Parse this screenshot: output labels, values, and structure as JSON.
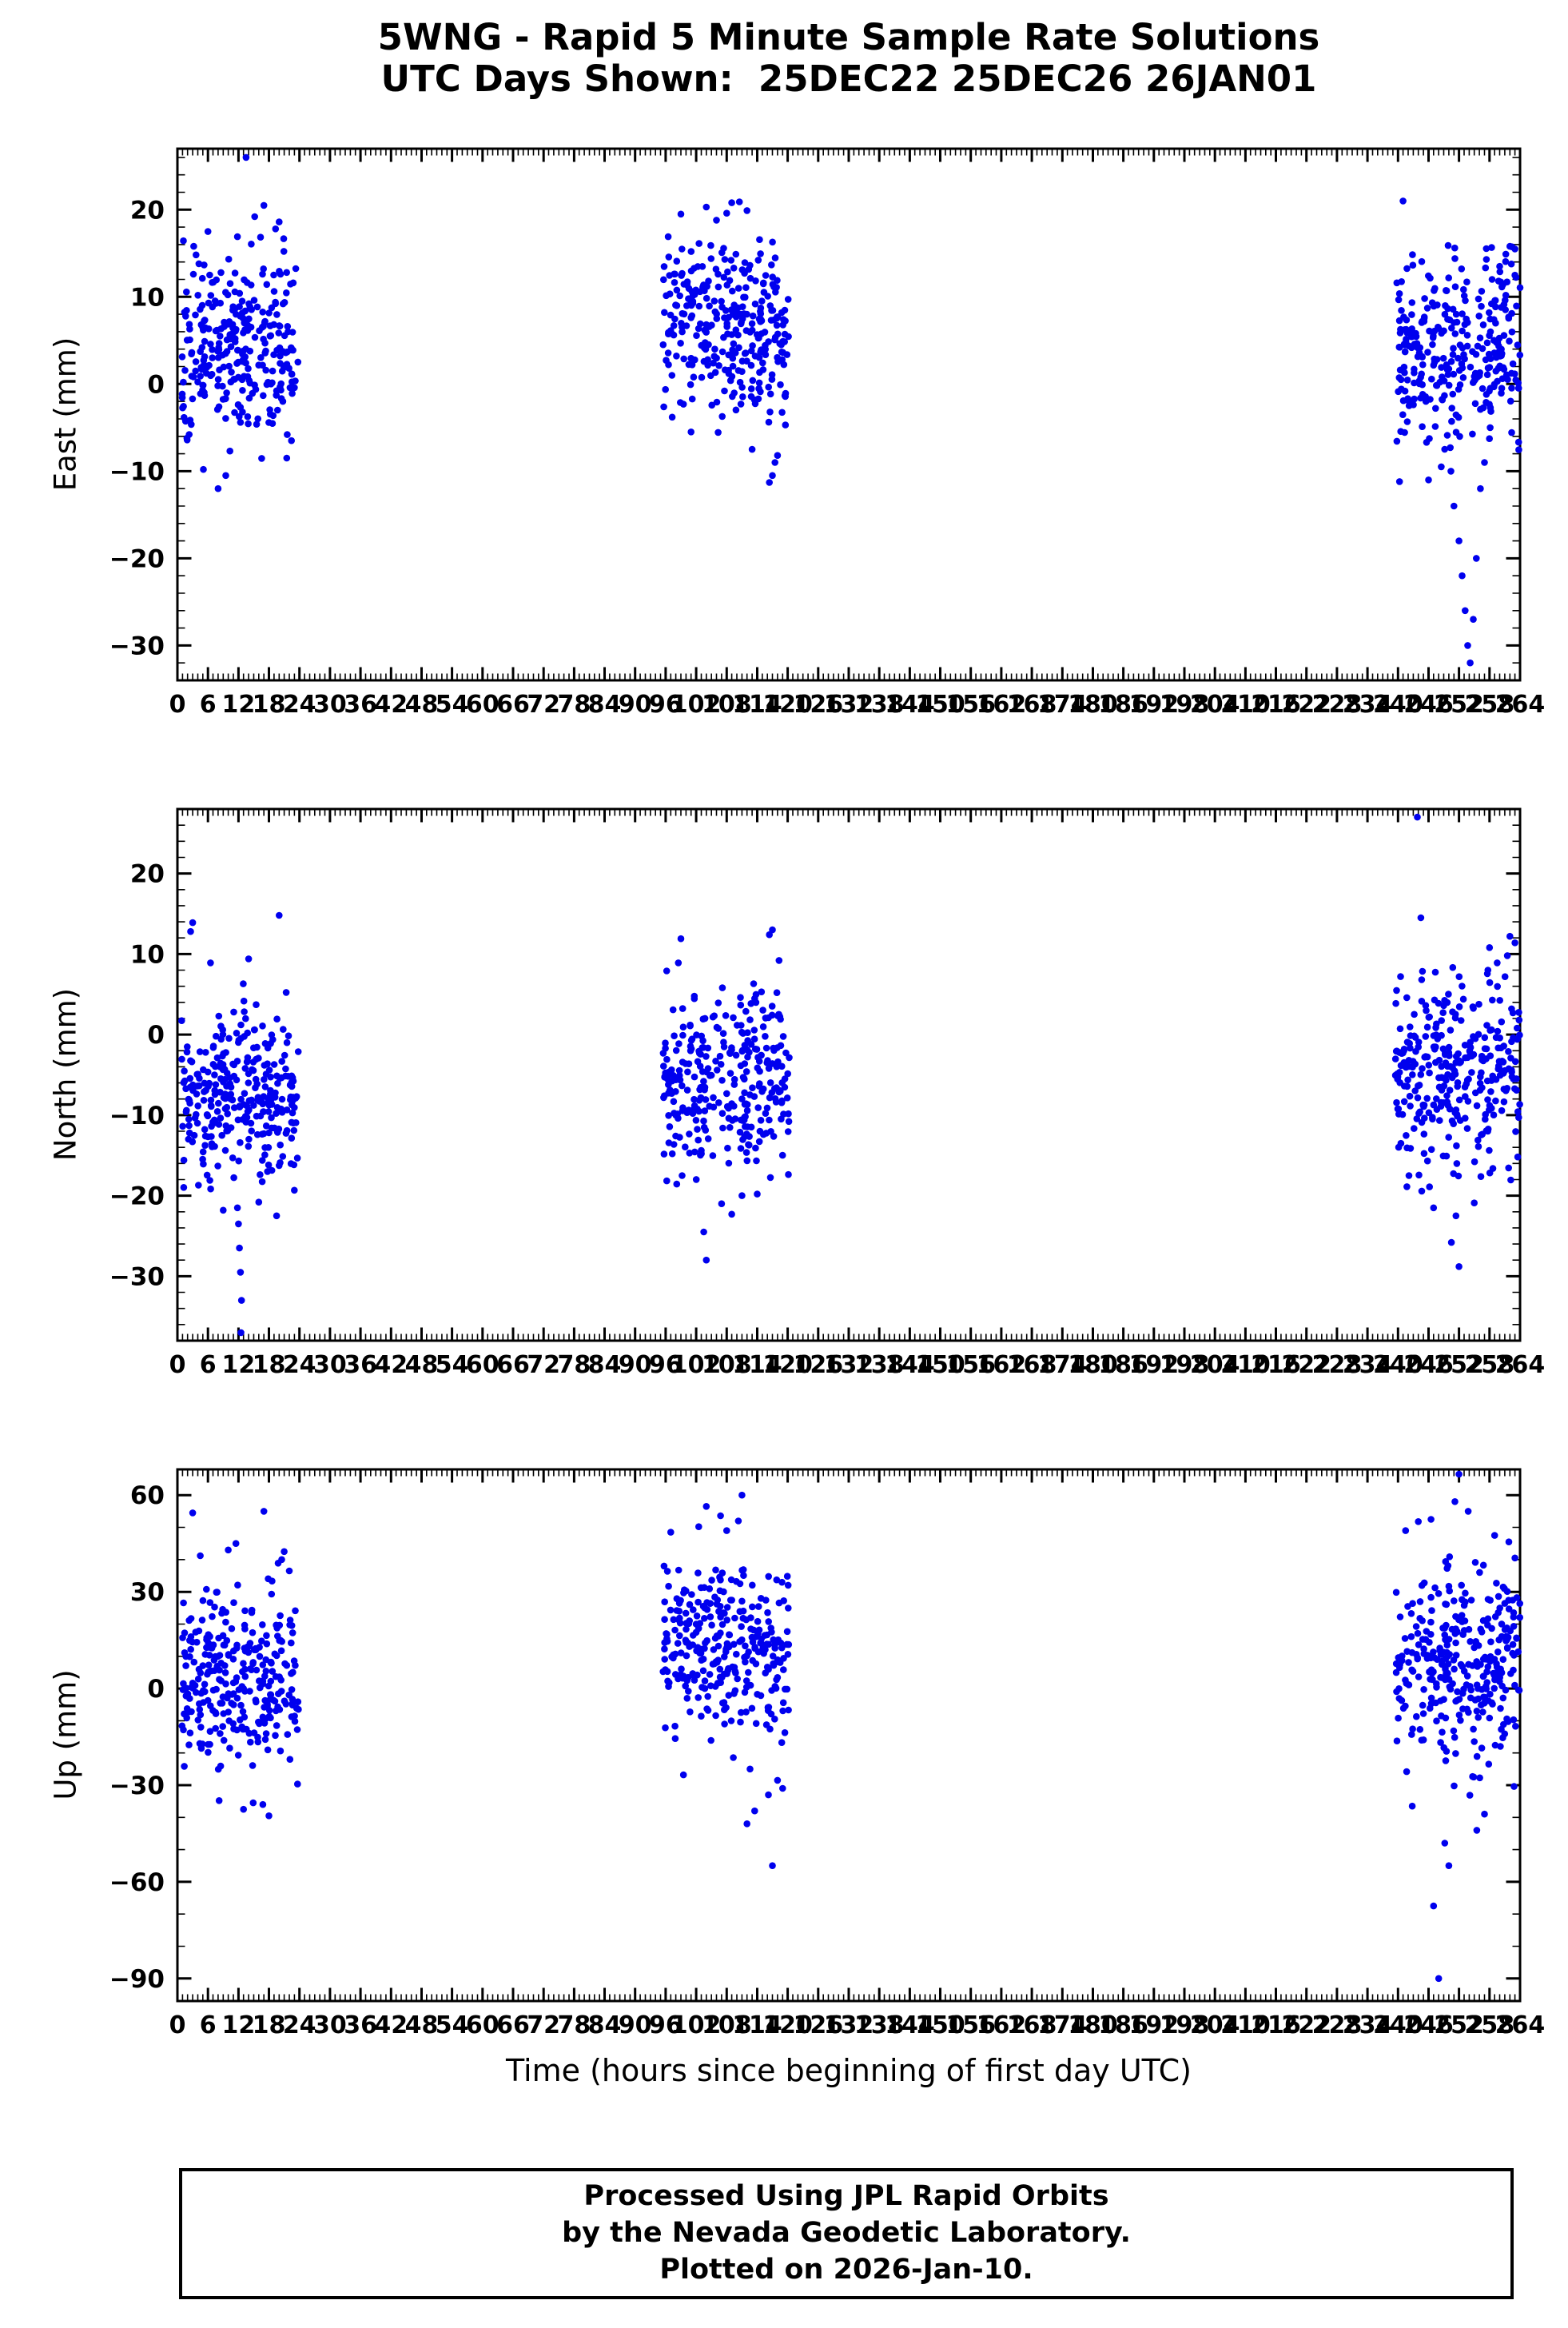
{
  "chart_data": {
    "type": "scatter",
    "title_line1": "5WNG - Rapid 5 Minute Sample Rate Solutions",
    "title_line2": "UTC Days Shown:  25DEC22 25DEC26 26JAN01",
    "xlabel": "Time (hours since beginning of first day UTC)",
    "xlim": [
      0,
      264
    ],
    "x_tick_step": 6,
    "x_minor_step": 1,
    "point_color": "#0000ee",
    "point_radius": 4.3,
    "legend": "none",
    "grid": false,
    "panels": [
      {
        "name": "East",
        "ylabel": "East (mm)",
        "ylim": [
          -34,
          27
        ],
        "yticks": [
          20,
          10,
          0,
          -10,
          -20,
          -30
        ],
        "ytick_minor": 2,
        "clusters": [
          {
            "x": [
              0.8,
              23.8
            ],
            "n": 290,
            "mean": 4.5,
            "sd": 5.0,
            "ymin": -9,
            "ymax": 17,
            "extra": [
              [
                13.5,
                26
              ],
              [
                8,
                -12
              ],
              [
                17,
                20.5
              ],
              [
                20,
                18.6
              ],
              [
                6,
                17.5
              ],
              [
                9.5,
                -10.5
              ],
              [
                3.2,
                15.8
              ],
              [
                21.5,
                -8.5
              ],
              [
                15.2,
                19.2
              ],
              [
                11.8,
                16.9
              ],
              [
                5.1,
                -9.8
              ],
              [
                19.3,
                17.8
              ]
            ]
          },
          {
            "x": [
              95.5,
              120.3
            ],
            "n": 300,
            "mean": 7,
            "sd": 5.2,
            "ymin": -6,
            "ymax": 18,
            "extra": [
              [
                117,
                -10.5
              ],
              [
                116.4,
                -11.3
              ],
              [
                117.5,
                -9
              ],
              [
                99,
                19.5
              ],
              [
                104,
                20.3
              ],
              [
                109,
                20.8
              ],
              [
                108,
                19.6
              ],
              [
                101,
                -5.5
              ],
              [
                113,
                -7.5
              ],
              [
                118,
                -8.2
              ],
              [
                96.5,
                16.9
              ],
              [
                112,
                19.9
              ],
              [
                110.5,
                20.9
              ],
              [
                106,
                18.8
              ]
            ]
          },
          {
            "x": [
              239.5,
              264
            ],
            "n": 300,
            "mean": 4,
            "sd": 5.8,
            "ymin": -8,
            "ymax": 16,
            "extra": [
              [
                241,
                21
              ],
              [
                251,
                -14
              ],
              [
                252,
                -18
              ],
              [
                252.6,
                -22
              ],
              [
                253.2,
                -26
              ],
              [
                253.7,
                -30
              ],
              [
                254.2,
                -32
              ],
              [
                254.8,
                -27
              ],
              [
                255.4,
                -20
              ],
              [
                250.4,
                -10
              ],
              [
                256.2,
                -12
              ],
              [
                257,
                -9
              ],
              [
                262,
                15.8
              ],
              [
                261.2,
                14.9
              ],
              [
                263,
                15.5
              ],
              [
                246,
                -11
              ],
              [
                248.5,
                -9.5
              ],
              [
                240.3,
                -11.2
              ],
              [
                258.5,
                12
              ],
              [
                260,
                13.5
              ]
            ]
          }
        ]
      },
      {
        "name": "North",
        "ylabel": "North (mm)",
        "ylim": [
          -38,
          28
        ],
        "yticks": [
          20,
          10,
          0,
          -10,
          -20,
          -30
        ],
        "ytick_minor": 2,
        "clusters": [
          {
            "x": [
              0.8,
              23.8
            ],
            "n": 300,
            "mean": -7,
            "sd": 5.5,
            "ymin": -20,
            "ymax": 8,
            "extra": [
              [
                12,
                -23.5
              ],
              [
                12.2,
                -26.5
              ],
              [
                12.4,
                -29.5
              ],
              [
                12.6,
                -33
              ],
              [
                12.5,
                -37
              ],
              [
                11.8,
                -21.5
              ],
              [
                20,
                14.8
              ],
              [
                3,
                13.9
              ],
              [
                2.6,
                12.8
              ],
              [
                9,
                -21.8
              ],
              [
                16,
                -20.8
              ],
              [
                6.5,
                8.9
              ],
              [
                14,
                9.4
              ],
              [
                19.5,
                -22.5
              ]
            ]
          },
          {
            "x": [
              95.5,
              120.3
            ],
            "n": 300,
            "mean": -5.5,
            "sd": 5.5,
            "ymin": -19,
            "ymax": 7,
            "extra": [
              [
                104,
                -28
              ],
              [
                103.5,
                -24.5
              ],
              [
                117,
                13
              ],
              [
                116.4,
                12.4
              ],
              [
                99,
                11.9
              ],
              [
                98.5,
                8.9
              ],
              [
                107,
                -21
              ],
              [
                111,
                -20
              ],
              [
                114,
                -19.8
              ],
              [
                118.3,
                9.2
              ],
              [
                96.2,
                7.9
              ],
              [
                109,
                -22.3
              ]
            ]
          },
          {
            "x": [
              239.5,
              264
            ],
            "n": 310,
            "mean": -5,
            "sd": 6.5,
            "ymin": -20,
            "ymax": 9,
            "extra": [
              [
                243.8,
                27
              ],
              [
                252,
                -28.8
              ],
              [
                250.5,
                -25.8
              ],
              [
                251.4,
                -22.5
              ],
              [
                258,
                10.8
              ],
              [
                262,
                12.2
              ],
              [
                263,
                11.4
              ],
              [
                261.5,
                9.8
              ],
              [
                247,
                -21.5
              ],
              [
                255,
                -20.9
              ],
              [
                240.5,
                7.2
              ],
              [
                259.5,
                8.9
              ],
              [
                244.5,
                14.5
              ],
              [
                246.2,
                -18.9
              ]
            ]
          }
        ]
      },
      {
        "name": "Up",
        "ylabel": "Up (mm)",
        "ylim": [
          -97,
          68
        ],
        "yticks": [
          60,
          30,
          0,
          -30,
          -60,
          -90
        ],
        "ytick_minor": 10,
        "clusters": [
          {
            "x": [
              0.8,
              23.8
            ],
            "n": 290,
            "mean": 3,
            "sd": 13,
            "ymin": -33,
            "ymax": 38,
            "extra": [
              [
                3,
                54.5
              ],
              [
                17,
                55
              ],
              [
                18,
                -39.5
              ],
              [
                13,
                -37.5
              ],
              [
                16.8,
                -36
              ],
              [
                10,
                43
              ],
              [
                11.5,
                45
              ],
              [
                20.5,
                40
              ],
              [
                21,
                42.5
              ],
              [
                8.2,
                -34.8
              ],
              [
                14.9,
                -35.5
              ],
              [
                19.8,
                38.9
              ],
              [
                4.5,
                41.2
              ],
              [
                22,
                36.5
              ]
            ]
          },
          {
            "x": [
              95.5,
              120.3
            ],
            "n": 300,
            "mean": 14,
            "sd": 14,
            "ymin": -25,
            "ymax": 46,
            "extra": [
              [
                111,
                60
              ],
              [
                104,
                56.5
              ],
              [
                110.3,
                52
              ],
              [
                117,
                -55
              ],
              [
                112,
                -42
              ],
              [
                113.5,
                -38
              ],
              [
                116.2,
                -33
              ],
              [
                118,
                -28.5
              ],
              [
                97,
                48.5
              ],
              [
                102.5,
                50.2
              ],
              [
                108,
                49
              ],
              [
                119,
                -31
              ],
              [
                99.5,
                -26.8
              ],
              [
                106.8,
                53.6
              ]
            ]
          },
          {
            "x": [
              239.5,
              264
            ],
            "n": 310,
            "mean": 8,
            "sd": 16,
            "ymin": -35,
            "ymax": 45,
            "extra": [
              [
                248,
                -90
              ],
              [
                252,
                66.5
              ],
              [
                247,
                -67.5
              ],
              [
                250,
                -55
              ],
              [
                249.2,
                -48
              ],
              [
                244,
                51.8
              ],
              [
                259,
                47.5
              ],
              [
                255.5,
                -44
              ],
              [
                257,
                -39
              ],
              [
                241.5,
                49
              ],
              [
                261.8,
                45.5
              ],
              [
                246.5,
                52.5
              ],
              [
                253.8,
                55
              ],
              [
                251.2,
                58
              ],
              [
                263,
                40.5
              ],
              [
                242.8,
                -36.5
              ]
            ]
          }
        ]
      }
    ]
  },
  "footer": {
    "line1": "Processed Using JPL Rapid Orbits",
    "line2": "by the Nevada Geodetic Laboratory.",
    "line3": "Plotted on 2026-Jan-10."
  }
}
